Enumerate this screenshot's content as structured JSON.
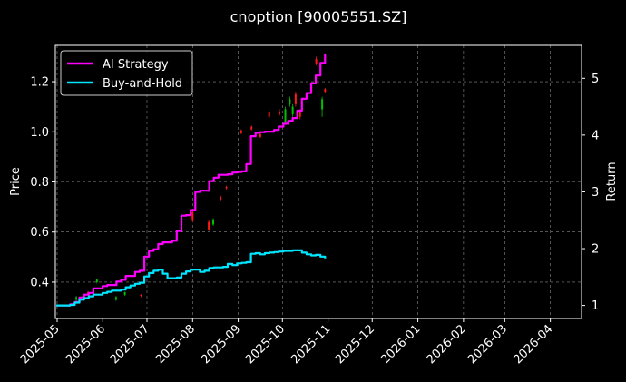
{
  "chart_data": {
    "type": "line",
    "title": "cnoption [90005551.SZ]",
    "ylabel_left": "Price",
    "ylabel_right": "Return",
    "ylim_left": [
      0.255,
      1.345
    ],
    "ylim_right": [
      0.77,
      5.58
    ],
    "yticks_left": [
      "0.4",
      "0.6",
      "0.8",
      "1.0",
      "1.2"
    ],
    "yticks_right": [
      "1",
      "2",
      "3",
      "4",
      "5"
    ],
    "xticks": [
      "2025-05",
      "2025-06",
      "2025-07",
      "2025-08",
      "2025-09",
      "2025-10",
      "2025-11",
      "2025-12",
      "2026-01",
      "2026-02",
      "2026-03",
      "2026-04"
    ],
    "grid": true,
    "legend_position": "top-left",
    "colors": {
      "up": "#00c000",
      "down": "#ff1a1a"
    },
    "series": [
      {
        "name": "AI Strategy",
        "color": "#ff00ff",
        "axis": "right",
        "values": [
          1.0,
          1.0,
          1.0,
          1.02,
          1.06,
          1.14,
          1.19,
          1.22,
          1.3,
          1.3,
          1.34,
          1.36,
          1.36,
          1.42,
          1.45,
          1.52,
          1.52,
          1.59,
          1.61,
          1.86,
          1.96,
          1.99,
          2.08,
          2.11,
          2.11,
          2.14,
          2.31,
          2.58,
          2.59,
          2.68,
          3.0,
          3.02,
          3.02,
          3.19,
          3.25,
          3.3,
          3.3,
          3.31,
          3.34,
          3.35,
          3.36,
          3.49,
          3.98,
          4.04,
          4.05,
          4.06,
          4.06,
          4.09,
          4.15,
          4.2,
          4.25,
          4.3,
          4.43,
          4.64,
          4.74,
          4.91,
          5.05,
          5.27,
          5.43
        ]
      },
      {
        "name": "Buy-and-Hold",
        "color": "#00e5ff",
        "axis": "right",
        "values": [
          1.0,
          1.0,
          1.0,
          1.01,
          1.05,
          1.1,
          1.13,
          1.16,
          1.19,
          1.19,
          1.22,
          1.24,
          1.26,
          1.26,
          1.28,
          1.32,
          1.35,
          1.38,
          1.4,
          1.51,
          1.57,
          1.61,
          1.63,
          1.56,
          1.48,
          1.48,
          1.49,
          1.56,
          1.6,
          1.63,
          1.63,
          1.59,
          1.61,
          1.66,
          1.67,
          1.67,
          1.68,
          1.73,
          1.71,
          1.74,
          1.75,
          1.76,
          1.91,
          1.92,
          1.9,
          1.92,
          1.93,
          1.94,
          1.95,
          1.96,
          1.96,
          1.97,
          1.97,
          1.93,
          1.9,
          1.88,
          1.89,
          1.86,
          1.83
        ]
      }
    ],
    "candles": [
      {
        "date": "2025-05-14",
        "open": 0.33,
        "close": 0.34,
        "high": 0.345,
        "low": 0.325
      },
      {
        "date": "2025-05-22",
        "open": 0.36,
        "close": 0.35,
        "high": 0.365,
        "low": 0.345
      },
      {
        "date": "2025-05-28",
        "open": 0.4,
        "close": 0.41,
        "high": 0.412,
        "low": 0.395
      },
      {
        "date": "2025-06-10",
        "open": 0.33,
        "close": 0.34,
        "high": 0.345,
        "low": 0.325
      },
      {
        "date": "2025-06-16",
        "open": 0.35,
        "close": 0.36,
        "high": 0.362,
        "low": 0.345
      },
      {
        "date": "2025-06-27",
        "open": 0.35,
        "close": 0.345,
        "high": 0.352,
        "low": 0.34
      },
      {
        "date": "2025-08-01",
        "open": 0.68,
        "close": 0.645,
        "high": 0.69,
        "low": 0.64
      },
      {
        "date": "2025-08-12",
        "open": 0.64,
        "close": 0.61,
        "high": 0.65,
        "low": 0.605
      },
      {
        "date": "2025-08-15",
        "open": 0.63,
        "close": 0.65,
        "high": 0.655,
        "low": 0.625
      },
      {
        "date": "2025-08-20",
        "open": 0.74,
        "close": 0.73,
        "high": 0.745,
        "low": 0.725
      },
      {
        "date": "2025-08-24",
        "open": 0.78,
        "close": 0.775,
        "high": 0.785,
        "low": 0.77
      },
      {
        "date": "2025-09-03",
        "open": 1.005,
        "close": 0.995,
        "high": 1.01,
        "low": 0.99
      },
      {
        "date": "2025-09-10",
        "open": 1.02,
        "close": 1.01,
        "high": 1.025,
        "low": 1.005
      },
      {
        "date": "2025-09-16",
        "open": 0.99,
        "close": 0.98,
        "high": 0.995,
        "low": 0.975
      },
      {
        "date": "2025-09-22",
        "open": 1.08,
        "close": 1.06,
        "high": 1.09,
        "low": 1.055
      },
      {
        "date": "2025-09-29",
        "open": 1.08,
        "close": 1.07,
        "high": 1.09,
        "low": 1.065
      },
      {
        "date": "2025-10-03",
        "open": 1.04,
        "close": 1.09,
        "high": 1.1,
        "low": 1.03
      },
      {
        "date": "2025-10-06",
        "open": 1.11,
        "close": 1.13,
        "high": 1.14,
        "low": 1.1
      },
      {
        "date": "2025-10-08",
        "open": 1.07,
        "close": 1.1,
        "high": 1.11,
        "low": 1.06
      },
      {
        "date": "2025-10-10",
        "open": 1.15,
        "close": 1.11,
        "high": 1.16,
        "low": 1.1
      },
      {
        "date": "2025-10-13",
        "open": 1.08,
        "close": 1.06,
        "high": 1.09,
        "low": 1.05
      },
      {
        "date": "2025-10-24",
        "open": 1.29,
        "close": 1.27,
        "high": 1.3,
        "low": 1.265
      },
      {
        "date": "2025-10-28",
        "open": 1.09,
        "close": 1.13,
        "high": 1.14,
        "low": 1.06
      },
      {
        "date": "2025-10-30",
        "open": 1.17,
        "close": 1.16,
        "high": 1.175,
        "low": 1.155
      }
    ]
  }
}
